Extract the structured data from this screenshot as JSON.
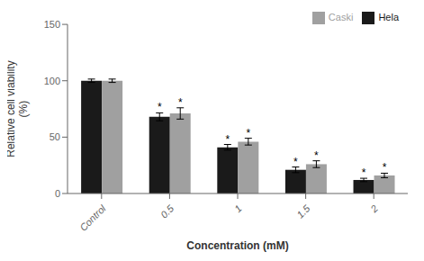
{
  "chart_data": {
    "type": "bar",
    "categories": [
      "Control",
      "0.5",
      "1",
      "1.5",
      "2"
    ],
    "series": [
      {
        "name": "Hela",
        "color": "#1a1a1a",
        "values": [
          100,
          68,
          41,
          21,
          12
        ],
        "errors": [
          1.5,
          3.5,
          2.5,
          2.5,
          1.5
        ]
      },
      {
        "name": "Caski",
        "color": "#a0a0a0",
        "values": [
          100,
          71,
          46,
          26,
          16
        ],
        "errors": [
          1.5,
          5.0,
          3.0,
          3.0,
          2.0
        ]
      }
    ],
    "xlabel": "Concentration (mM)",
    "ylabel": "Relative cell viability\n(%)",
    "ylim": [
      0,
      150
    ],
    "yticks": [
      0,
      50,
      100,
      150
    ],
    "annotations": [
      {
        "text": "*",
        "category": "0.5",
        "series": "Hela"
      },
      {
        "text": "*",
        "category": "0.5",
        "series": "Caski"
      },
      {
        "text": "*",
        "category": "1",
        "series": "Hela"
      },
      {
        "text": "*",
        "category": "1",
        "series": "Caski"
      },
      {
        "text": "*",
        "category": "1.5",
        "series": "Hela"
      },
      {
        "text": "*",
        "category": "1.5",
        "series": "Caski"
      },
      {
        "text": "*",
        "category": "2",
        "series": "Hela"
      },
      {
        "text": "*",
        "category": "2",
        "series": "Caski"
      }
    ],
    "legend": "upper right",
    "grid": false
  }
}
